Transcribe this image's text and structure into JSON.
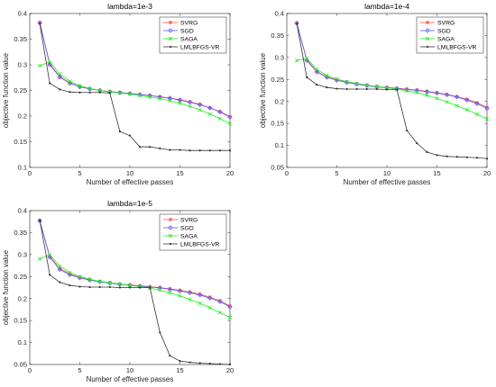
{
  "chart_data": [
    {
      "type": "line",
      "title": "lambda=1e-3",
      "xlabel": "Number of effective passes",
      "ylabel": "objective function value",
      "xlim": [
        0,
        20
      ],
      "ylim": [
        0.1,
        0.4
      ],
      "xticks": [
        0,
        5,
        10,
        15,
        20
      ],
      "yticks": [
        0.1,
        0.15,
        0.2,
        0.25,
        0.3,
        0.35,
        0.4
      ],
      "x": [
        1,
        2,
        3,
        4,
        5,
        6,
        7,
        8,
        9,
        10,
        11,
        12,
        13,
        14,
        15,
        16,
        17,
        18,
        19,
        20
      ],
      "legend_position": "top-right",
      "series": [
        {
          "name": "SVRG",
          "color": "#ff4d4d",
          "marker": "star",
          "values": [
            0.382,
            0.302,
            0.277,
            0.265,
            0.257,
            0.253,
            0.25,
            0.248,
            0.246,
            0.244,
            0.242,
            0.24,
            0.238,
            0.235,
            0.232,
            0.228,
            0.223,
            0.216,
            0.209,
            0.199
          ]
        },
        {
          "name": "SGD",
          "color": "#5a5aff",
          "marker": "diamond",
          "values": [
            0.382,
            0.3,
            0.276,
            0.264,
            0.257,
            0.253,
            0.25,
            0.247,
            0.246,
            0.244,
            0.242,
            0.24,
            0.237,
            0.235,
            0.231,
            0.227,
            0.222,
            0.216,
            0.208,
            0.198
          ]
        },
        {
          "name": "SAGA",
          "color": "#22ee22",
          "marker": "x",
          "values": [
            0.298,
            0.306,
            0.282,
            0.268,
            0.259,
            0.254,
            0.25,
            0.247,
            0.245,
            0.243,
            0.24,
            0.237,
            0.234,
            0.23,
            0.225,
            0.219,
            0.212,
            0.204,
            0.195,
            0.185
          ]
        },
        {
          "name": "LMLBFGS-VR",
          "color": "#333333",
          "marker": "dot",
          "values": [
            0.38,
            0.264,
            0.252,
            0.247,
            0.246,
            0.246,
            0.246,
            0.245,
            0.17,
            0.162,
            0.14,
            0.14,
            0.137,
            0.134,
            0.134,
            0.133,
            0.133,
            0.133,
            0.133,
            0.133
          ]
        }
      ]
    },
    {
      "type": "line",
      "title": "lambda=1e-4",
      "xlabel": "Number of effective passes",
      "ylabel": "objective function value",
      "xlim": [
        0,
        20
      ],
      "ylim": [
        0.05,
        0.4
      ],
      "xticks": [
        0,
        5,
        10,
        15,
        20
      ],
      "yticks": [
        0.05,
        0.1,
        0.15,
        0.2,
        0.25,
        0.3,
        0.35,
        0.4
      ],
      "x": [
        1,
        2,
        3,
        4,
        5,
        6,
        7,
        8,
        9,
        10,
        11,
        12,
        13,
        14,
        15,
        16,
        17,
        18,
        19,
        20
      ],
      "legend_position": "top-right",
      "series": [
        {
          "name": "SVRG",
          "color": "#ff4d4d",
          "marker": "star",
          "values": [
            0.378,
            0.295,
            0.268,
            0.256,
            0.249,
            0.244,
            0.24,
            0.237,
            0.234,
            0.232,
            0.23,
            0.228,
            0.226,
            0.223,
            0.22,
            0.216,
            0.211,
            0.205,
            0.197,
            0.187
          ]
        },
        {
          "name": "SGD",
          "color": "#5a5aff",
          "marker": "diamond",
          "values": [
            0.378,
            0.293,
            0.267,
            0.255,
            0.248,
            0.243,
            0.239,
            0.236,
            0.233,
            0.231,
            0.229,
            0.227,
            0.225,
            0.222,
            0.219,
            0.215,
            0.21,
            0.203,
            0.195,
            0.184
          ]
        },
        {
          "name": "SAGA",
          "color": "#22ee22",
          "marker": "x",
          "values": [
            0.293,
            0.298,
            0.273,
            0.259,
            0.251,
            0.245,
            0.241,
            0.237,
            0.234,
            0.231,
            0.228,
            0.224,
            0.22,
            0.214,
            0.207,
            0.199,
            0.19,
            0.181,
            0.171,
            0.16
          ]
        },
        {
          "name": "LMLBFGS-VR",
          "color": "#333333",
          "marker": "dot",
          "values": [
            0.377,
            0.255,
            0.238,
            0.232,
            0.229,
            0.228,
            0.228,
            0.228,
            0.228,
            0.227,
            0.227,
            0.134,
            0.105,
            0.085,
            0.078,
            0.075,
            0.074,
            0.073,
            0.072,
            0.07
          ]
        }
      ]
    },
    {
      "type": "line",
      "title": "lambda=1e-5",
      "xlabel": "Number of effective passes",
      "ylabel": "objective function value",
      "xlim": [
        0,
        20
      ],
      "ylim": [
        0.05,
        0.4
      ],
      "xticks": [
        0,
        5,
        10,
        15,
        20
      ],
      "yticks": [
        0.05,
        0.1,
        0.15,
        0.2,
        0.25,
        0.3,
        0.35,
        0.4
      ],
      "x": [
        1,
        2,
        3,
        4,
        5,
        6,
        7,
        8,
        9,
        10,
        11,
        12,
        13,
        14,
        15,
        16,
        17,
        18,
        19,
        20
      ],
      "legend_position": "top-right",
      "series": [
        {
          "name": "SVRG",
          "color": "#ff4d4d",
          "marker": "star",
          "values": [
            0.377,
            0.296,
            0.268,
            0.256,
            0.248,
            0.243,
            0.239,
            0.236,
            0.233,
            0.231,
            0.229,
            0.227,
            0.225,
            0.222,
            0.219,
            0.215,
            0.21,
            0.203,
            0.195,
            0.183
          ]
        },
        {
          "name": "SGD",
          "color": "#5a5aff",
          "marker": "diamond",
          "values": [
            0.377,
            0.294,
            0.266,
            0.254,
            0.247,
            0.242,
            0.238,
            0.235,
            0.232,
            0.23,
            0.228,
            0.226,
            0.224,
            0.221,
            0.217,
            0.213,
            0.208,
            0.201,
            0.193,
            0.181
          ]
        },
        {
          "name": "SAGA",
          "color": "#22ee22",
          "marker": "x",
          "values": [
            0.29,
            0.3,
            0.274,
            0.259,
            0.25,
            0.244,
            0.239,
            0.236,
            0.233,
            0.23,
            0.227,
            0.224,
            0.219,
            0.213,
            0.206,
            0.198,
            0.189,
            0.179,
            0.168,
            0.157
          ]
        },
        {
          "name": "LMLBFGS-VR",
          "color": "#333333",
          "marker": "dot",
          "values": [
            0.378,
            0.254,
            0.237,
            0.23,
            0.227,
            0.226,
            0.226,
            0.226,
            0.225,
            0.225,
            0.225,
            0.225,
            0.123,
            0.07,
            0.058,
            0.055,
            0.053,
            0.052,
            0.051,
            0.05
          ]
        }
      ]
    }
  ]
}
